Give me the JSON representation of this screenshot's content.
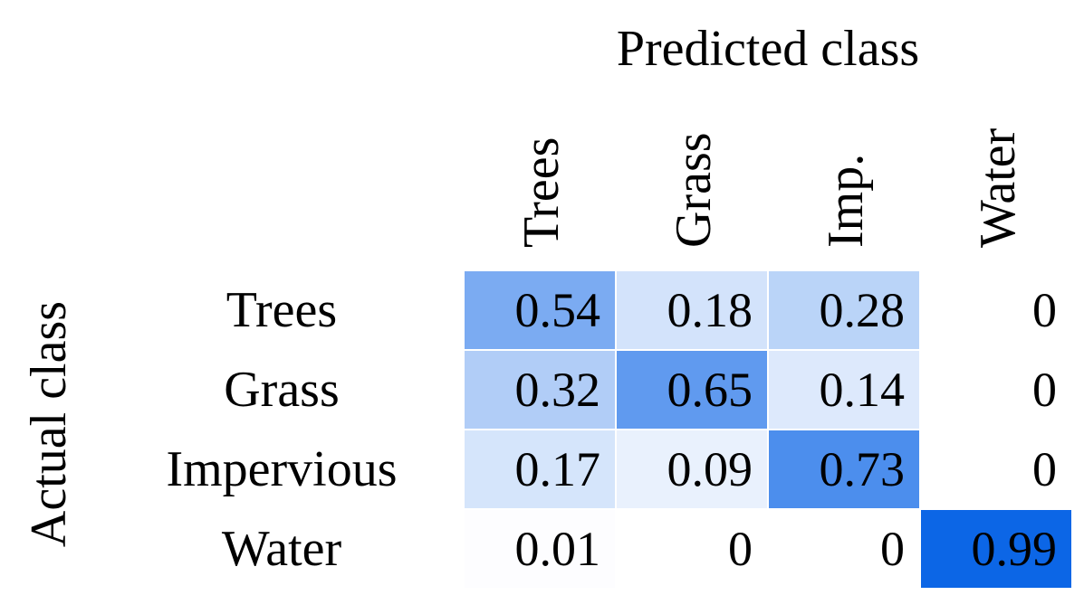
{
  "chart_data": {
    "type": "heatmap",
    "title": "",
    "xlabel": "Predicted class",
    "ylabel": "Actual class",
    "x_categories": [
      "Trees",
      "Grass",
      "Imp.",
      "Water"
    ],
    "y_categories": [
      "Trees",
      "Grass",
      "Impervious",
      "Water"
    ],
    "cells": [
      [
        "0.54",
        "0.18",
        "0.28",
        "0"
      ],
      [
        "0.32",
        "0.65",
        "0.14",
        "0"
      ],
      [
        "0.17",
        "0.09",
        "0.73",
        "0"
      ],
      [
        "0.01",
        "0",
        "0",
        "0.99"
      ]
    ],
    "value_range": [
      0,
      1
    ],
    "colormap": {
      "low": "#ffffff",
      "high": "#0a64e6"
    },
    "legend": "none",
    "grid": false
  }
}
